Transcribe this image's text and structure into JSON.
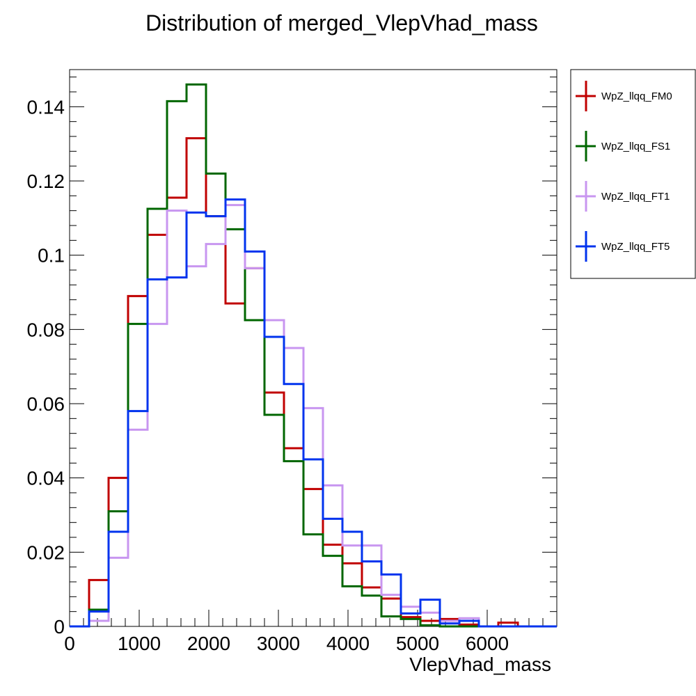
{
  "chart_data": {
    "type": "histogram",
    "title": "Distribution of merged_VlepVhad_mass",
    "xlabel": "VlepVhad_mass",
    "ylabel": "",
    "xlim": [
      0,
      7000
    ],
    "ylim": [
      0,
      0.15
    ],
    "bin_edges": [
      0,
      280,
      560,
      840,
      1120,
      1400,
      1680,
      1960,
      2240,
      2520,
      2800,
      3080,
      3360,
      3640,
      3920,
      4200,
      4480,
      4760,
      5040,
      5320,
      5600,
      5880,
      6160,
      6440,
      6720,
      7000
    ],
    "x_ticks": [
      0,
      1000,
      2000,
      3000,
      4000,
      5000,
      6000
    ],
    "x_tick_labels": [
      "0",
      "1000",
      "2000",
      "3000",
      "4000",
      "5000",
      "6000"
    ],
    "y_ticks": [
      0,
      0.02,
      0.04,
      0.06,
      0.08,
      0.1,
      0.12,
      0.14
    ],
    "y_tick_labels": [
      "0",
      "0.02",
      "0.04",
      "0.06",
      "0.08",
      "0.1",
      "0.12",
      "0.14"
    ],
    "legend_position": "right",
    "series": [
      {
        "name": "WpZ_llqq_FM0",
        "color": "#c00000",
        "values": [
          0,
          0.0125,
          0.04,
          0.089,
          0.1055,
          0.1155,
          0.1315,
          0.1105,
          0.087,
          0.0965,
          0.063,
          0.048,
          0.037,
          0.022,
          0.017,
          0.0105,
          0.0075,
          0.0025,
          0.0015,
          0.002,
          0.0005,
          0,
          0.001,
          0,
          0
        ]
      },
      {
        "name": "WpZ_llqq_FS1",
        "color": "#006600",
        "values": [
          0,
          0.0045,
          0.031,
          0.0815,
          0.1125,
          0.1415,
          0.146,
          0.122,
          0.107,
          0.0825,
          0.057,
          0.0445,
          0.0248,
          0.019,
          0.0108,
          0.0083,
          0.0027,
          0.002,
          0.0003,
          0,
          0,
          0,
          0,
          0,
          0
        ]
      },
      {
        "name": "WpZ_llqq_FT1",
        "color": "#c896f0",
        "values": [
          0,
          0.0015,
          0.0185,
          0.053,
          0.0815,
          0.112,
          0.097,
          0.103,
          0.1135,
          0.0965,
          0.0825,
          0.075,
          0.0588,
          0.038,
          0.0218,
          0.0218,
          0.0085,
          0.0053,
          0.0037,
          0.0015,
          0.0022,
          0,
          0,
          0,
          0
        ]
      },
      {
        "name": "WpZ_llqq_FT5",
        "color": "#0033ee",
        "values": [
          0,
          0.004,
          0.0255,
          0.058,
          0.0935,
          0.094,
          0.1115,
          0.1105,
          0.115,
          0.101,
          0.078,
          0.0653,
          0.045,
          0.029,
          0.0255,
          0.0175,
          0.014,
          0.0035,
          0.0072,
          0.0008,
          0.0015,
          0,
          0,
          0,
          0
        ]
      }
    ]
  }
}
